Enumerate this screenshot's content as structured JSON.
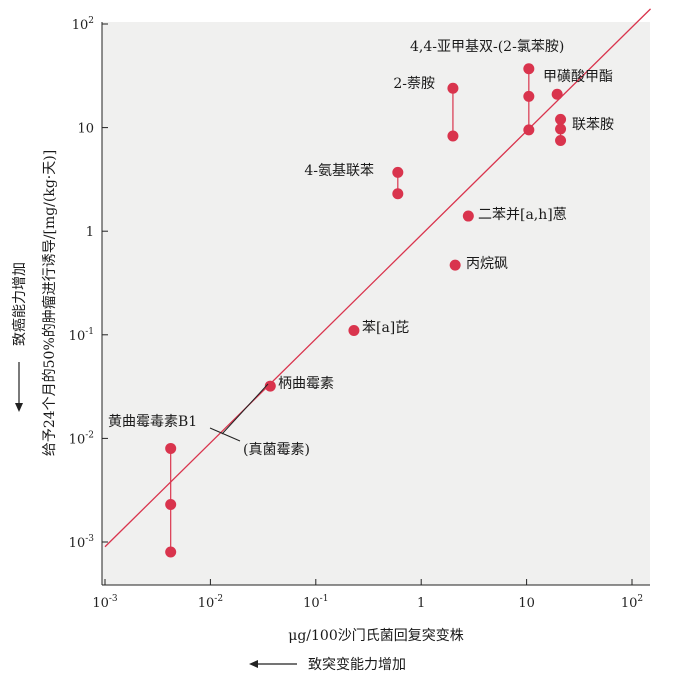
{
  "chart_data": {
    "type": "scatter",
    "xscale": "log",
    "yscale": "log",
    "xlim": [
      0.001,
      150
    ],
    "ylim": [
      0.0008,
      100
    ],
    "x_ticks": [
      {
        "value": 0.001,
        "base": "10",
        "exp": "-3"
      },
      {
        "value": 0.01,
        "base": "10",
        "exp": "-2"
      },
      {
        "value": 0.1,
        "base": "10",
        "exp": "-1"
      },
      {
        "value": 1,
        "base": "1",
        "exp": ""
      },
      {
        "value": 10,
        "base": "10",
        "exp": ""
      },
      {
        "value": 100,
        "base": "10",
        "exp": "2"
      }
    ],
    "y_ticks": [
      {
        "value": 0.001,
        "base": "10",
        "exp": "-3"
      },
      {
        "value": 0.01,
        "base": "10",
        "exp": "-2"
      },
      {
        "value": 0.1,
        "base": "10",
        "exp": "-1"
      },
      {
        "value": 1,
        "base": "1",
        "exp": ""
      },
      {
        "value": 10,
        "base": "10",
        "exp": ""
      },
      {
        "value": 100,
        "base": "10",
        "exp": "2"
      }
    ],
    "xlabel": "μg/100沙门氏菌回复突变株",
    "xlabel_arrow": "致突变能力增加",
    "ylabel": "给予24个月的50%的肿瘤进行诱导/[mg/(kg·天)]",
    "ylabel_arrow": "致癌能力增加",
    "trend_line": {
      "x": [
        0.001,
        150
      ],
      "y": [
        0.0009,
        140
      ]
    },
    "compounds": [
      {
        "name": "4,4-亚甲基双-(2-氯苯胺)",
        "points": [
          {
            "x": 10.5,
            "y": 37
          },
          {
            "x": 10.5,
            "y": 20
          },
          {
            "x": 10.5,
            "y": 9.5
          }
        ]
      },
      {
        "name": "2-萘胺",
        "points": [
          {
            "x": 2.0,
            "y": 24
          },
          {
            "x": 2.0,
            "y": 8.3
          }
        ]
      },
      {
        "name": "甲磺酸甲酯",
        "points": [
          {
            "x": 19.5,
            "y": 21
          }
        ]
      },
      {
        "name": "联苯胺",
        "points": [
          {
            "x": 21,
            "y": 12
          },
          {
            "x": 21,
            "y": 9.7
          },
          {
            "x": 21,
            "y": 7.5
          }
        ]
      },
      {
        "name": "4-氨基联苯",
        "points": [
          {
            "x": 0.6,
            "y": 3.7
          },
          {
            "x": 0.6,
            "y": 2.3
          }
        ]
      },
      {
        "name": "二苯并[a,h]蒽",
        "points": [
          {
            "x": 2.8,
            "y": 1.4
          }
        ]
      },
      {
        "name": "丙烷砜",
        "points": [
          {
            "x": 2.1,
            "y": 0.47
          }
        ]
      },
      {
        "name": "苯[a]芘",
        "points": [
          {
            "x": 0.23,
            "y": 0.11
          }
        ]
      },
      {
        "name": "柄曲霉素",
        "points": [
          {
            "x": 0.037,
            "y": 0.032
          }
        ]
      },
      {
        "name": "黄曲霉毒素B1",
        "points": [
          {
            "x": 0.0042,
            "y": 0.008
          },
          {
            "x": 0.0042,
            "y": 0.0023
          },
          {
            "x": 0.0042,
            "y": 0.0008
          }
        ]
      }
    ],
    "annotation": "(真菌霉素)",
    "colors": {
      "point": "#d9344d",
      "line": "#d9344d",
      "plot_bg": "#f0f0ef"
    }
  }
}
